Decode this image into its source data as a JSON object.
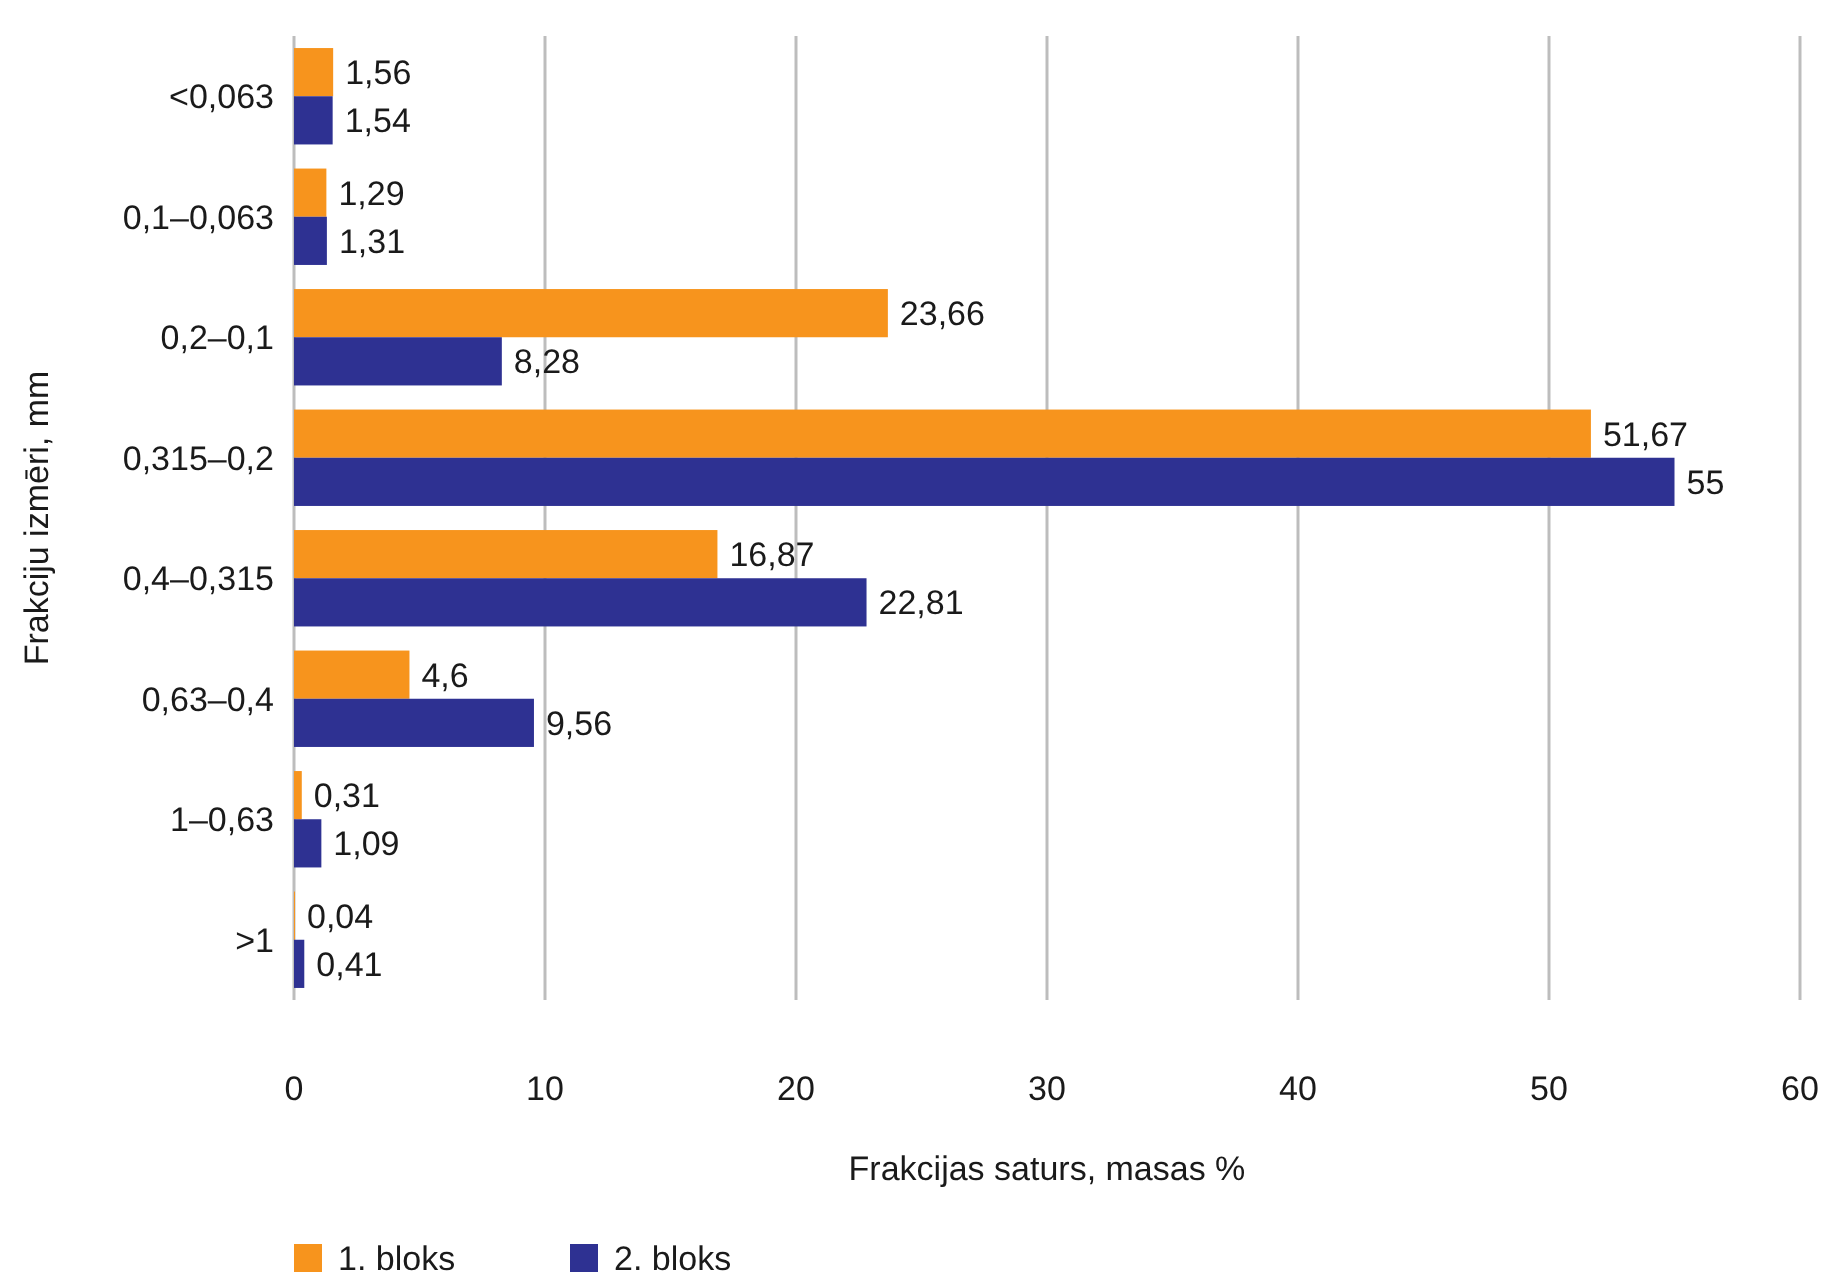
{
  "chart_data": {
    "type": "bar",
    "orientation": "horizontal",
    "xlabel": "Frakcijas saturs, masas %",
    "ylabel": "Frakciju izmēri, mm",
    "categories": [
      "<0,063",
      "0,1–0,063",
      "0,2–0,1",
      "0,315–0,2",
      "0,4–0,315",
      "0,63–0,4",
      "1–0,63",
      ">1"
    ],
    "series": [
      {
        "name": "1. bloks",
        "color": "#f7941d",
        "values": [
          1.56,
          1.29,
          23.66,
          51.67,
          16.87,
          4.6,
          0.31,
          0.04
        ],
        "value_labels": [
          "1,56",
          "1,29",
          "23,66",
          "51,67",
          "16,87",
          "4,6",
          "0,31",
          "0,04"
        ]
      },
      {
        "name": "2. bloks",
        "color": "#2e3192",
        "values": [
          1.54,
          1.31,
          8.28,
          55,
          22.81,
          9.56,
          1.09,
          0.41
        ],
        "value_labels": [
          "1,54",
          "1,31",
          "8,28",
          "55",
          "22,81",
          "9,56",
          "1,09",
          "0,41"
        ]
      }
    ],
    "xlim": [
      0,
      60
    ],
    "xticks": [
      0,
      10,
      20,
      30,
      40,
      50,
      60
    ],
    "grid": "x",
    "legend": "bottom left"
  }
}
